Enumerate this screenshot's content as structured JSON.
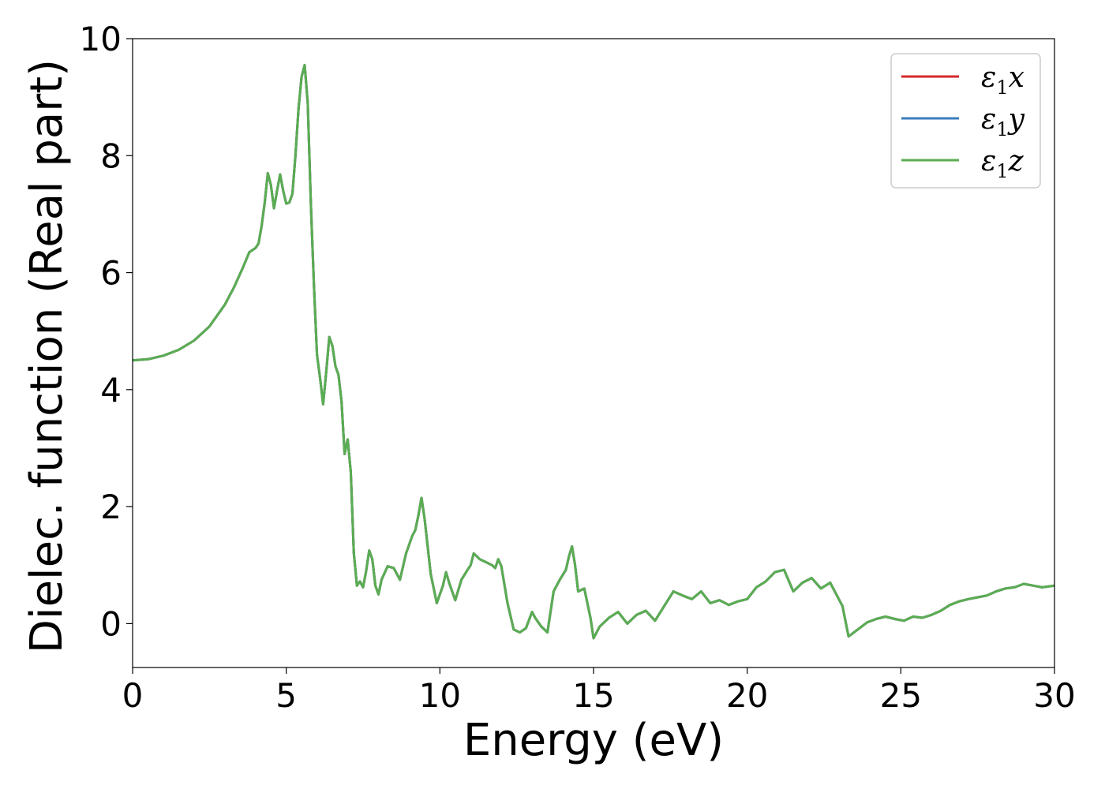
{
  "chart_data": {
    "type": "line",
    "xlabel": "Energy (eV)",
    "ylabel": "Dielec. function (Real part)",
    "xlim": [
      0,
      30
    ],
    "ylim": [
      -0.75,
      10
    ],
    "xticks": [
      0,
      5,
      10,
      15,
      20,
      25,
      30
    ],
    "yticks": [
      0,
      2,
      4,
      6,
      8,
      10
    ],
    "grid": false,
    "legend_position": "top-right",
    "series": [
      {
        "name": "ε1x",
        "legend_symbol": "ε",
        "legend_subscript": "1",
        "legend_axis": "x",
        "color": "#d62728",
        "x": [
          0,
          0.5,
          1,
          1.5,
          2,
          2.5,
          3,
          3.3,
          3.6,
          3.8,
          4.0,
          4.1,
          4.2,
          4.3,
          4.4,
          4.5,
          4.6,
          4.7,
          4.8,
          4.9,
          5.0,
          5.1,
          5.2,
          5.3,
          5.4,
          5.5,
          5.6,
          5.7,
          5.8,
          5.9,
          6.0,
          6.1,
          6.2,
          6.3,
          6.4,
          6.5,
          6.6,
          6.7,
          6.8,
          6.9,
          7.0,
          7.1,
          7.2,
          7.3,
          7.4,
          7.5,
          7.6,
          7.7,
          7.8,
          7.9,
          8.0,
          8.1,
          8.3,
          8.5,
          8.7,
          8.9,
          9.1,
          9.2,
          9.3,
          9.4,
          9.5,
          9.7,
          9.9,
          10.1,
          10.2,
          10.3,
          10.5,
          10.7,
          10.9,
          11.0,
          11.1,
          11.3,
          11.5,
          11.7,
          11.8,
          11.9,
          12.0,
          12.2,
          12.4,
          12.6,
          12.8,
          13.0,
          13.1,
          13.3,
          13.5,
          13.7,
          13.9,
          14.1,
          14.2,
          14.3,
          14.4,
          14.5,
          14.7,
          14.9,
          15.0,
          15.2,
          15.5,
          15.8,
          16.1,
          16.4,
          16.7,
          17.0,
          17.3,
          17.6,
          17.9,
          18.2,
          18.5,
          18.8,
          19.1,
          19.4,
          19.7,
          20.0,
          20.3,
          20.6,
          20.9,
          21.2,
          21.5,
          21.8,
          22.1,
          22.4,
          22.7,
          22.9,
          23.1,
          23.3,
          23.6,
          23.9,
          24.2,
          24.5,
          24.8,
          25.1,
          25.4,
          25.7,
          26.0,
          26.3,
          26.6,
          26.9,
          27.2,
          27.5,
          27.8,
          28.1,
          28.4,
          28.7,
          29.0,
          29.3,
          29.6,
          30
        ],
        "y": [
          4.5,
          4.52,
          4.58,
          4.68,
          4.84,
          5.08,
          5.45,
          5.75,
          6.1,
          6.35,
          6.42,
          6.5,
          6.8,
          7.2,
          7.7,
          7.5,
          7.1,
          7.4,
          7.68,
          7.4,
          7.18,
          7.2,
          7.35,
          8.0,
          8.8,
          9.35,
          9.55,
          8.9,
          7.2,
          5.8,
          4.6,
          4.2,
          3.75,
          4.3,
          4.9,
          4.75,
          4.4,
          4.25,
          3.8,
          2.9,
          3.15,
          2.6,
          1.2,
          0.65,
          0.72,
          0.62,
          0.9,
          1.25,
          1.1,
          0.65,
          0.5,
          0.75,
          0.98,
          0.95,
          0.75,
          1.2,
          1.5,
          1.6,
          1.85,
          2.15,
          1.8,
          0.85,
          0.35,
          0.65,
          0.88,
          0.7,
          0.4,
          0.75,
          0.92,
          1.0,
          1.2,
          1.1,
          1.05,
          1.0,
          0.95,
          1.1,
          0.98,
          0.35,
          -0.1,
          -0.15,
          -0.08,
          0.2,
          0.1,
          -0.05,
          -0.15,
          0.55,
          0.75,
          0.92,
          1.15,
          1.32,
          1.0,
          0.55,
          0.6,
          0.1,
          -0.25,
          -0.05,
          0.1,
          0.2,
          0.0,
          0.15,
          0.22,
          0.05,
          0.3,
          0.55,
          0.48,
          0.42,
          0.55,
          0.35,
          0.4,
          0.32,
          0.38,
          0.42,
          0.62,
          0.72,
          0.88,
          0.92,
          0.55,
          0.7,
          0.78,
          0.6,
          0.7,
          0.5,
          0.3,
          -0.22,
          -0.1,
          0.02,
          0.08,
          0.12,
          0.08,
          0.05,
          0.12,
          0.1,
          0.15,
          0.22,
          0.32,
          0.38,
          0.42,
          0.45,
          0.48,
          0.55,
          0.6,
          0.62,
          0.68,
          0.65,
          0.62,
          0.65
        ]
      },
      {
        "name": "ε1y",
        "legend_symbol": "ε",
        "legend_subscript": "1",
        "legend_axis": "y",
        "color": "#3a7dbc",
        "x": [
          0,
          0.5,
          1,
          1.5,
          2,
          2.5,
          3,
          3.3,
          3.6,
          3.8,
          4.0,
          4.1,
          4.2,
          4.3,
          4.4,
          4.5,
          4.6,
          4.7,
          4.8,
          4.9,
          5.0,
          5.1,
          5.2,
          5.3,
          5.4,
          5.5,
          5.6,
          5.7,
          5.8,
          5.9,
          6.0,
          6.1,
          6.2,
          6.3,
          6.4,
          6.5,
          6.6,
          6.7,
          6.8,
          6.9,
          7.0,
          7.1,
          7.2,
          7.3,
          7.4,
          7.5,
          7.6,
          7.7,
          7.8,
          7.9,
          8.0,
          8.1,
          8.3,
          8.5,
          8.7,
          8.9,
          9.1,
          9.2,
          9.3,
          9.4,
          9.5,
          9.7,
          9.9,
          10.1,
          10.2,
          10.3,
          10.5,
          10.7,
          10.9,
          11.0,
          11.1,
          11.3,
          11.5,
          11.7,
          11.8,
          11.9,
          12.0,
          12.2,
          12.4,
          12.6,
          12.8,
          13.0,
          13.1,
          13.3,
          13.5,
          13.7,
          13.9,
          14.1,
          14.2,
          14.3,
          14.4,
          14.5,
          14.7,
          14.9,
          15.0,
          15.2,
          15.5,
          15.8,
          16.1,
          16.4,
          16.7,
          17.0,
          17.3,
          17.6,
          17.9,
          18.2,
          18.5,
          18.8,
          19.1,
          19.4,
          19.7,
          20.0,
          20.3,
          20.6,
          20.9,
          21.2,
          21.5,
          21.8,
          22.1,
          22.4,
          22.7,
          22.9,
          23.1,
          23.3,
          23.6,
          23.9,
          24.2,
          24.5,
          24.8,
          25.1,
          25.4,
          25.7,
          26.0,
          26.3,
          26.6,
          26.9,
          27.2,
          27.5,
          27.8,
          28.1,
          28.4,
          28.7,
          29.0,
          29.3,
          29.6,
          30
        ],
        "y": [
          4.5,
          4.52,
          4.58,
          4.68,
          4.84,
          5.08,
          5.45,
          5.75,
          6.1,
          6.35,
          6.42,
          6.5,
          6.8,
          7.2,
          7.7,
          7.5,
          7.1,
          7.4,
          7.68,
          7.4,
          7.18,
          7.2,
          7.35,
          8.0,
          8.8,
          9.35,
          9.55,
          8.9,
          7.2,
          5.8,
          4.6,
          4.2,
          3.75,
          4.3,
          4.9,
          4.75,
          4.4,
          4.25,
          3.8,
          2.9,
          3.15,
          2.6,
          1.2,
          0.65,
          0.72,
          0.62,
          0.9,
          1.25,
          1.1,
          0.65,
          0.5,
          0.75,
          0.98,
          0.95,
          0.75,
          1.2,
          1.5,
          1.6,
          1.85,
          2.15,
          1.8,
          0.85,
          0.35,
          0.65,
          0.88,
          0.7,
          0.4,
          0.75,
          0.92,
          1.0,
          1.2,
          1.1,
          1.05,
          1.0,
          0.95,
          1.1,
          0.98,
          0.35,
          -0.1,
          -0.15,
          -0.08,
          0.2,
          0.1,
          -0.05,
          -0.15,
          0.55,
          0.75,
          0.92,
          1.15,
          1.32,
          1.0,
          0.55,
          0.6,
          0.1,
          -0.25,
          -0.05,
          0.1,
          0.2,
          0.0,
          0.15,
          0.22,
          0.05,
          0.3,
          0.55,
          0.48,
          0.42,
          0.55,
          0.35,
          0.4,
          0.32,
          0.38,
          0.42,
          0.62,
          0.72,
          0.88,
          0.92,
          0.55,
          0.7,
          0.78,
          0.6,
          0.7,
          0.5,
          0.3,
          -0.22,
          -0.1,
          0.02,
          0.08,
          0.12,
          0.08,
          0.05,
          0.12,
          0.1,
          0.15,
          0.22,
          0.32,
          0.38,
          0.42,
          0.45,
          0.48,
          0.55,
          0.6,
          0.62,
          0.68,
          0.65,
          0.62,
          0.65
        ]
      },
      {
        "name": "ε1z",
        "legend_symbol": "ε",
        "legend_subscript": "1",
        "legend_axis": "z",
        "color": "#5aad52",
        "x": [
          0,
          0.5,
          1,
          1.5,
          2,
          2.5,
          3,
          3.3,
          3.6,
          3.8,
          4.0,
          4.1,
          4.2,
          4.3,
          4.4,
          4.5,
          4.6,
          4.7,
          4.8,
          4.9,
          5.0,
          5.1,
          5.2,
          5.3,
          5.4,
          5.5,
          5.6,
          5.7,
          5.8,
          5.9,
          6.0,
          6.1,
          6.2,
          6.3,
          6.4,
          6.5,
          6.6,
          6.7,
          6.8,
          6.9,
          7.0,
          7.1,
          7.2,
          7.3,
          7.4,
          7.5,
          7.6,
          7.7,
          7.8,
          7.9,
          8.0,
          8.1,
          8.3,
          8.5,
          8.7,
          8.9,
          9.1,
          9.2,
          9.3,
          9.4,
          9.5,
          9.7,
          9.9,
          10.1,
          10.2,
          10.3,
          10.5,
          10.7,
          10.9,
          11.0,
          11.1,
          11.3,
          11.5,
          11.7,
          11.8,
          11.9,
          12.0,
          12.2,
          12.4,
          12.6,
          12.8,
          13.0,
          13.1,
          13.3,
          13.5,
          13.7,
          13.9,
          14.1,
          14.2,
          14.3,
          14.4,
          14.5,
          14.7,
          14.9,
          15.0,
          15.2,
          15.5,
          15.8,
          16.1,
          16.4,
          16.7,
          17.0,
          17.3,
          17.6,
          17.9,
          18.2,
          18.5,
          18.8,
          19.1,
          19.4,
          19.7,
          20.0,
          20.3,
          20.6,
          20.9,
          21.2,
          21.5,
          21.8,
          22.1,
          22.4,
          22.7,
          22.9,
          23.1,
          23.3,
          23.6,
          23.9,
          24.2,
          24.5,
          24.8,
          25.1,
          25.4,
          25.7,
          26.0,
          26.3,
          26.6,
          26.9,
          27.2,
          27.5,
          27.8,
          28.1,
          28.4,
          28.7,
          29.0,
          29.3,
          29.6,
          30
        ],
        "y": [
          4.5,
          4.52,
          4.58,
          4.68,
          4.84,
          5.08,
          5.45,
          5.75,
          6.1,
          6.35,
          6.42,
          6.5,
          6.8,
          7.2,
          7.7,
          7.5,
          7.1,
          7.4,
          7.68,
          7.4,
          7.18,
          7.2,
          7.35,
          8.0,
          8.8,
          9.35,
          9.55,
          8.9,
          7.2,
          5.8,
          4.6,
          4.2,
          3.75,
          4.3,
          4.9,
          4.75,
          4.4,
          4.25,
          3.8,
          2.9,
          3.15,
          2.6,
          1.2,
          0.65,
          0.72,
          0.62,
          0.9,
          1.25,
          1.1,
          0.65,
          0.5,
          0.75,
          0.98,
          0.95,
          0.75,
          1.2,
          1.5,
          1.6,
          1.85,
          2.15,
          1.8,
          0.85,
          0.35,
          0.65,
          0.88,
          0.7,
          0.4,
          0.75,
          0.92,
          1.0,
          1.2,
          1.1,
          1.05,
          1.0,
          0.95,
          1.1,
          0.98,
          0.35,
          -0.1,
          -0.15,
          -0.08,
          0.2,
          0.1,
          -0.05,
          -0.15,
          0.55,
          0.75,
          0.92,
          1.15,
          1.32,
          1.0,
          0.55,
          0.6,
          0.1,
          -0.25,
          -0.05,
          0.1,
          0.2,
          0.0,
          0.15,
          0.22,
          0.05,
          0.3,
          0.55,
          0.48,
          0.42,
          0.55,
          0.35,
          0.4,
          0.32,
          0.38,
          0.42,
          0.62,
          0.72,
          0.88,
          0.92,
          0.55,
          0.7,
          0.78,
          0.6,
          0.7,
          0.5,
          0.3,
          -0.22,
          -0.1,
          0.02,
          0.08,
          0.12,
          0.08,
          0.05,
          0.12,
          0.1,
          0.15,
          0.22,
          0.32,
          0.38,
          0.42,
          0.45,
          0.48,
          0.55,
          0.6,
          0.62,
          0.68,
          0.65,
          0.62,
          0.65
        ]
      }
    ]
  }
}
